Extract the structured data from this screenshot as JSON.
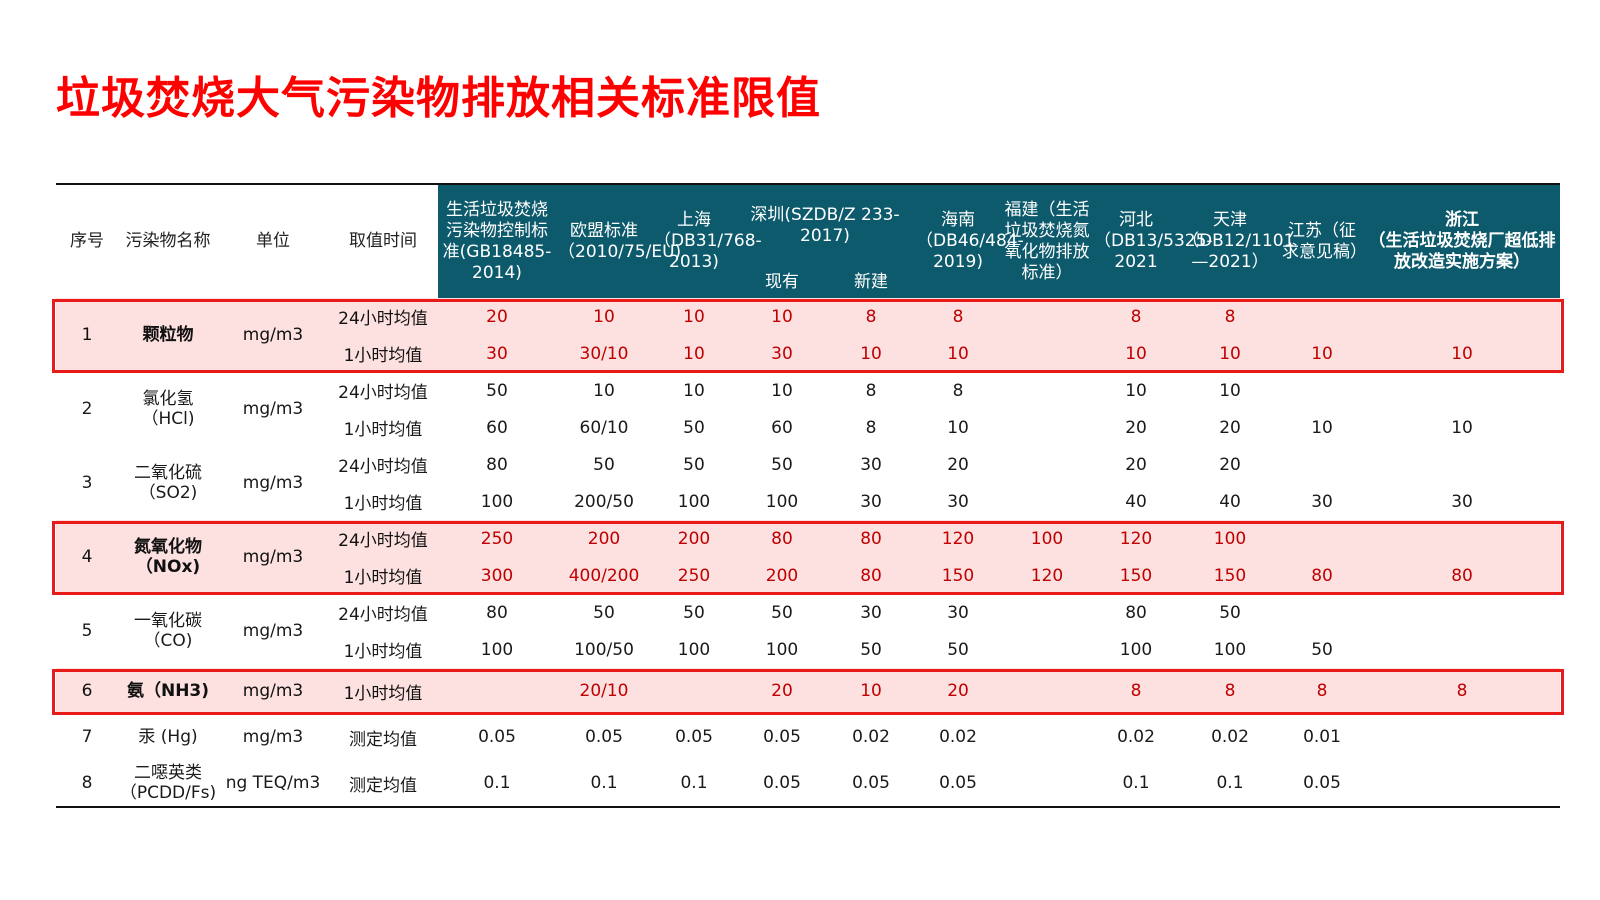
{
  "title": "垃圾焚烧大气污染物排放相关标准限值",
  "headers": {
    "no": "序号",
    "name": "污染物名称",
    "unit": "单位",
    "time": "取值时间",
    "gb": "生活垃圾焚烧污染物控制标准(GB18485-2014)",
    "eu": "欧盟标准（2010/75/EU)",
    "sh": "上海（DB31/768-2013)",
    "sz": "深圳(SZDB/Z 233-2017)",
    "sz_existing": "现有",
    "sz_new": "新建",
    "hn": "海南（DB46/484-2019)",
    "fj": "福建（生活垃圾焚烧氮氧化物排放标准）",
    "hb": "河北（DB13/5325-2021",
    "tj": "天津（DB12/1101—2021）",
    "js": "江苏（征求意见稿）",
    "zj_line1": "浙江",
    "zj_line2": "（生活垃圾焚烧厂超低排放改造实施方案）"
  },
  "colors": {
    "header_bg": "#0e5a6d",
    "title": "#ff0000",
    "highlight_bg": "#fde0e0",
    "highlight_text": "#c00000",
    "box": "#e81a1a"
  },
  "rows": [
    {
      "no": "1",
      "name": "颗粒物",
      "unit": "mg/m3",
      "highlight": true,
      "bold": true,
      "lines": [
        {
          "time": "24小时均值",
          "v": [
            "20",
            "10",
            "10",
            "10",
            "8",
            "8",
            "",
            "8",
            "8",
            "",
            ""
          ]
        },
        {
          "time": "1小时均值",
          "v": [
            "30",
            "30/10",
            "10",
            "30",
            "10",
            "10",
            "",
            "10",
            "10",
            "10",
            "10"
          ]
        }
      ]
    },
    {
      "no": "2",
      "name": "氯化氢（HCl)",
      "unit": "mg/m3",
      "lines": [
        {
          "time": "24小时均值",
          "v": [
            "50",
            "10",
            "10",
            "10",
            "8",
            "8",
            "",
            "10",
            "10",
            "",
            ""
          ]
        },
        {
          "time": "1小时均值",
          "v": [
            "60",
            "60/10",
            "50",
            "60",
            "8",
            "10",
            "",
            "20",
            "20",
            "10",
            "10"
          ]
        }
      ]
    },
    {
      "no": "3",
      "name": "二氧化硫（SO2)",
      "unit": "mg/m3",
      "lines": [
        {
          "time": "24小时均值",
          "v": [
            "80",
            "50",
            "50",
            "50",
            "30",
            "20",
            "",
            "20",
            "20",
            "",
            ""
          ]
        },
        {
          "time": "1小时均值",
          "v": [
            "100",
            "200/50",
            "100",
            "100",
            "30",
            "30",
            "",
            "40",
            "40",
            "30",
            "30"
          ]
        }
      ]
    },
    {
      "no": "4",
      "name": "氮氧化物（NOx)",
      "unit": "mg/m3",
      "highlight": true,
      "bold": true,
      "lines": [
        {
          "time": "24小时均值",
          "v": [
            "250",
            "200",
            "200",
            "80",
            "80",
            "120",
            "100",
            "120",
            "100",
            "",
            ""
          ]
        },
        {
          "time": "1小时均值",
          "v": [
            "300",
            "400/200",
            "250",
            "200",
            "80",
            "150",
            "120",
            "150",
            "150",
            "80",
            "80"
          ]
        }
      ]
    },
    {
      "no": "5",
      "name": "一氧化碳（CO)",
      "unit": "mg/m3",
      "lines": [
        {
          "time": "24小时均值",
          "v": [
            "80",
            "50",
            "50",
            "50",
            "30",
            "30",
            "",
            "80",
            "50",
            "",
            ""
          ]
        },
        {
          "time": "1小时均值",
          "v": [
            "100",
            "100/50",
            "100",
            "100",
            "50",
            "50",
            "",
            "100",
            "100",
            "50",
            ""
          ]
        }
      ]
    },
    {
      "no": "6",
      "name": "氨（NH3)",
      "unit": "mg/m3",
      "highlight": true,
      "bold": true,
      "lines": [
        {
          "time": "1小时均值",
          "v": [
            "",
            "20/10",
            "",
            "20",
            "10",
            "20",
            "",
            "8",
            "8",
            "8",
            "8"
          ]
        }
      ]
    },
    {
      "no": "7",
      "name": "汞 (Hg)",
      "unit": "mg/m3",
      "lines": [
        {
          "time": "测定均值",
          "v": [
            "0.05",
            "0.05",
            "0.05",
            "0.05",
            "0.02",
            "0.02",
            "",
            "0.02",
            "0.02",
            "0.01",
            ""
          ]
        }
      ]
    },
    {
      "no": "8",
      "name": "二噁英类（PCDD/Fs)",
      "unit": "ng TEQ/m3",
      "lines": [
        {
          "time": "测定均值",
          "v": [
            "0.1",
            "0.1",
            "0.1",
            "0.05",
            "0.05",
            "0.05",
            "",
            "0.1",
            "0.1",
            "0.05",
            ""
          ]
        }
      ]
    }
  ]
}
